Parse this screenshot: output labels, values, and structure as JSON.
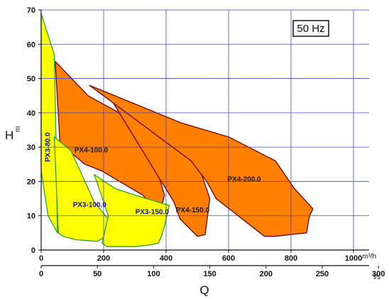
{
  "chart_data": {
    "type": "area",
    "badge": "50 Hz",
    "ylabel": "H",
    "ylabel_unit": "m",
    "xlabel": "Q",
    "y_ticks": [
      0,
      10,
      20,
      30,
      40,
      50,
      60,
      70
    ],
    "ylim": [
      0,
      70
    ],
    "x_ticks_m3h": [
      0,
      200,
      400,
      600,
      800,
      1000
    ],
    "x_unit_m3h": "m³/h",
    "xlim_m3h": [
      0,
      1050
    ],
    "x_ticks_ls": [
      0,
      50,
      100,
      150,
      200,
      250,
      300
    ],
    "x_unit_ls": "l/s",
    "grid": true,
    "colors": {
      "orange": "#ff7f00",
      "yellow": "#ffff00",
      "orange_edge": "#6b0000",
      "yellow_edge": "#2e9e2e",
      "grid": "#4444cc",
      "label_orange": "#1a1a1a",
      "label_yellow": "#1010a0"
    },
    "regions": [
      {
        "name": "PX4-100.0",
        "group": "orange",
        "label_at": [
          160,
          28.5
        ],
        "boundary": [
          [
            45,
            55
          ],
          [
            150,
            45
          ],
          [
            250,
            40
          ],
          [
            330,
            35
          ],
          [
            365,
            25
          ],
          [
            395,
            16
          ],
          [
            380,
            11
          ],
          [
            325,
            16
          ],
          [
            195,
            23
          ],
          [
            140,
            25
          ],
          [
            100,
            28
          ],
          [
            75,
            30
          ],
          [
            60,
            31.5
          ]
        ]
      },
      {
        "name": "PX4-150.0",
        "group": "orange",
        "label_at": [
          485,
          11
        ],
        "boundary": [
          [
            230,
            43
          ],
          [
            340,
            37
          ],
          [
            390,
            34
          ],
          [
            480,
            27
          ],
          [
            510,
            23
          ],
          [
            540,
            15
          ],
          [
            525,
            4.5
          ],
          [
            500,
            4
          ],
          [
            445,
            9
          ],
          [
            425,
            14
          ]
        ]
      },
      {
        "name": "PX4-200.0",
        "group": "orange",
        "label_at": [
          650,
          20
        ],
        "boundary": [
          [
            155,
            48
          ],
          [
            450,
            37
          ],
          [
            600,
            33
          ],
          [
            750,
            26
          ],
          [
            810,
            18
          ],
          [
            870,
            12
          ],
          [
            860,
            10
          ],
          [
            855,
            8
          ],
          [
            850,
            5
          ],
          [
            750,
            4
          ],
          [
            715,
            4
          ],
          [
            560,
            15
          ],
          [
            530,
            20
          ],
          [
            480,
            26
          ]
        ]
      },
      {
        "name": "PX3-80.0",
        "group": "yellow",
        "label_at": [
          28,
          30
        ],
        "boundary": [
          [
            0,
            69
          ],
          [
            42,
            57
          ],
          [
            48,
            30
          ],
          [
            52,
            5
          ],
          [
            22,
            10
          ],
          [
            0,
            23
          ]
        ]
      },
      {
        "name": "PX3-100.0",
        "group": "yellow",
        "label_at": [
          155,
          12.5
        ],
        "boundary": [
          [
            42,
            33
          ],
          [
            95,
            29
          ],
          [
            140,
            20
          ],
          [
            170,
            14
          ],
          [
            215,
            9
          ],
          [
            225,
            5
          ],
          [
            180,
            2.5
          ],
          [
            110,
            3
          ],
          [
            70,
            4
          ],
          [
            55,
            5
          ]
        ]
      },
      {
        "name": "PX3-150.0",
        "group": "yellow",
        "label_at": [
          355,
          10.5
        ],
        "boundary": [
          [
            170,
            22
          ],
          [
            235,
            18
          ],
          [
            300,
            16
          ],
          [
            410,
            13
          ],
          [
            395,
            7
          ],
          [
            385,
            4
          ],
          [
            375,
            2
          ],
          [
            350,
            1.5
          ],
          [
            300,
            1
          ],
          [
            210,
            1
          ],
          [
            195,
            2
          ],
          [
            205,
            6
          ],
          [
            215,
            10
          ]
        ]
      }
    ]
  }
}
